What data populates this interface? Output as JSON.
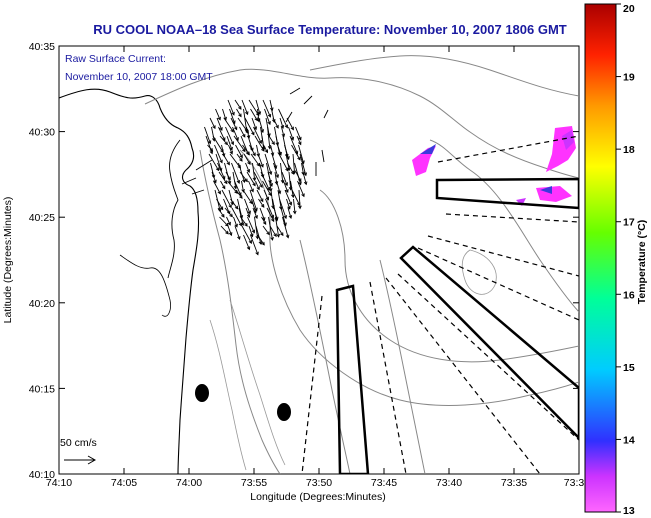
{
  "title": "RU COOL  NOAA–18  Sea Surface Temperature:  November 10, 2007 1806 GMT",
  "current_note": {
    "line1": "Raw Surface Current:",
    "line2": "November 10, 2007 18:00 GMT"
  },
  "scale_label": "50 cm/s",
  "x_axis": {
    "label": "Longitude (Degrees:Minutes)",
    "ticks": [
      "74:10",
      "74:05",
      "74:00",
      "73:55",
      "73:50",
      "73:45",
      "73:40",
      "73:35",
      "73:3"
    ]
  },
  "y_axis": {
    "label": "Latitude (Degrees:Minutes)",
    "ticks": [
      "40:35",
      "40:30",
      "40:25",
      "40:20",
      "40:15",
      "40:10"
    ]
  },
  "colorbar": {
    "label": "Temperature (°C)",
    "ticks": [
      "20",
      "19",
      "18",
      "17",
      "16",
      "15",
      "14",
      "13"
    ],
    "range": [
      13,
      20
    ]
  },
  "colors": {
    "title": "#1a1aa0",
    "sst_patch_magenta": "#ff33ff",
    "sst_patch_blue": "#3b3bdc"
  }
}
